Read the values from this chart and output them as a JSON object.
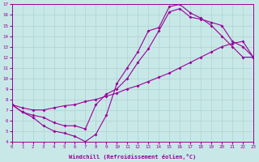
{
  "xlabel": "Windchill (Refroidissement éolien,°C)",
  "xlim": [
    0,
    23
  ],
  "ylim": [
    4,
    17
  ],
  "xticks": [
    0,
    1,
    2,
    3,
    4,
    5,
    6,
    7,
    8,
    9,
    10,
    11,
    12,
    13,
    14,
    15,
    16,
    17,
    18,
    19,
    20,
    21,
    22,
    23
  ],
  "yticks": [
    4,
    5,
    6,
    7,
    8,
    9,
    10,
    11,
    12,
    13,
    14,
    15,
    16,
    17
  ],
  "bg_color": "#c8e8e8",
  "line_color": "#990099",
  "line1_x": [
    0,
    1,
    2,
    3,
    4,
    5,
    6,
    7,
    8,
    9,
    10,
    11,
    12,
    13,
    14,
    15,
    16,
    17,
    18,
    19,
    20,
    21,
    22,
    23
  ],
  "line1_y": [
    7.5,
    6.8,
    6.3,
    5.5,
    5.0,
    4.8,
    4.5,
    4.0,
    4.7,
    6.5,
    9.5,
    11.0,
    12.5,
    14.5,
    14.8,
    16.8,
    17.0,
    16.2,
    15.7,
    15.0,
    14.0,
    13.0,
    12.0,
    12.0
  ],
  "line2_x": [
    0,
    1,
    2,
    3,
    4,
    5,
    6,
    7,
    8,
    9,
    10,
    11,
    12,
    13,
    14,
    15,
    16,
    17,
    18,
    19,
    20,
    21,
    22,
    23
  ],
  "line2_y": [
    7.5,
    7.2,
    7.0,
    7.0,
    7.2,
    7.4,
    7.5,
    7.8,
    8.0,
    8.3,
    8.6,
    9.0,
    9.3,
    9.7,
    10.1,
    10.5,
    11.0,
    11.5,
    12.0,
    12.5,
    13.0,
    13.3,
    13.5,
    12.0
  ],
  "line3_x": [
    0,
    1,
    2,
    3,
    4,
    5,
    6,
    7,
    8,
    9,
    10,
    11,
    12,
    13,
    14,
    15,
    16,
    17,
    18,
    19,
    20,
    21,
    22,
    23
  ],
  "line3_y": [
    7.5,
    6.8,
    6.5,
    6.3,
    5.8,
    5.5,
    5.5,
    5.2,
    7.5,
    8.5,
    9.0,
    10.0,
    11.5,
    12.8,
    14.5,
    16.3,
    16.6,
    15.8,
    15.6,
    15.3,
    15.0,
    13.5,
    13.0,
    12.0
  ]
}
